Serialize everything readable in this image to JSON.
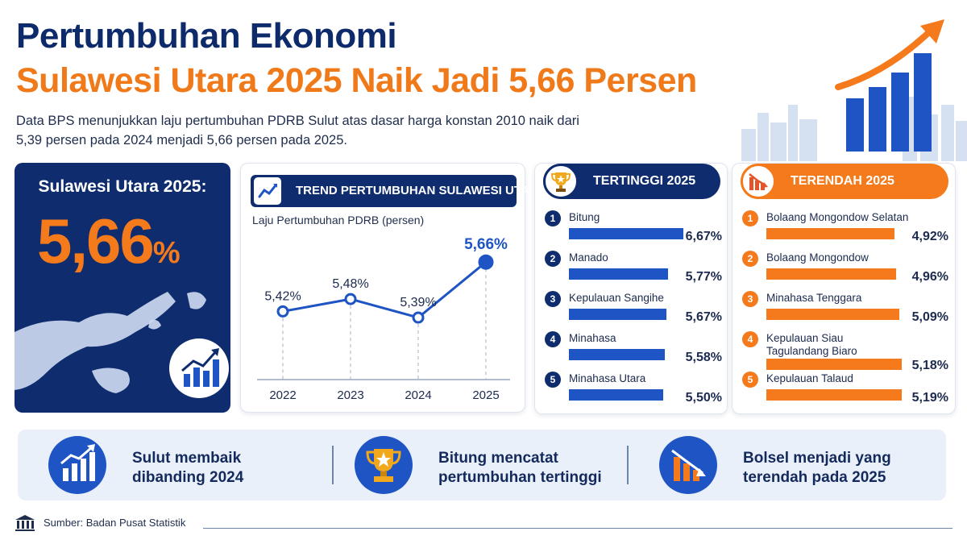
{
  "header": {
    "title_line1": "Pertumbuhan Ekonomi",
    "title_line2": "Sulawesi Utara 2025 Naik Jadi 5,66 Persen",
    "subtitle": "Data BPS menunjukkan laju pertumbuhan PDRB Sulut atas dasar harga konstan 2010 naik dari 5,39 persen pada 2024 menjadi 5,66 persen pada 2025."
  },
  "highlight": {
    "label": "Sulawesi Utara 2025:",
    "value": "5,66",
    "unit": "%",
    "icon": "bar-chart-growth-icon"
  },
  "trend": {
    "header": "TREND PERTUMBUHAN SULAWESI UTARA",
    "icon": "line-chart-icon"
  },
  "chart_data": {
    "type": "line",
    "title": "TREND PERTUMBUHAN SULAWESI UTARA",
    "subtitle": "Laju Pertumbuhan PDRB (persen)",
    "x": [
      "2022",
      "2023",
      "2024",
      "2025"
    ],
    "series": [
      {
        "values": [
          5.42,
          5.48,
          5.39,
          5.66
        ]
      }
    ],
    "data_labels": [
      "5,42%",
      "5,48%",
      "5,39%",
      "5,66%"
    ],
    "ylim": [
      5.3,
      5.7
    ],
    "grid": false,
    "color": "#1f54c4"
  },
  "highest": {
    "title": "TERTINGGI 2025",
    "icon": "trophy-icon",
    "max_value": 6.67,
    "items": [
      {
        "rank": "1",
        "name": "Bitung",
        "value": 6.67,
        "label": "6,67%"
      },
      {
        "rank": "2",
        "name": "Manado",
        "value": 5.77,
        "label": "5,77%"
      },
      {
        "rank": "3",
        "name": "Kepulauan Sangihe",
        "value": 5.67,
        "label": "5,67%"
      },
      {
        "rank": "4",
        "name": "Minahasa",
        "value": 5.58,
        "label": "5,58%"
      },
      {
        "rank": "5",
        "name": "Minahasa Utara",
        "value": 5.5,
        "label": "5,50%"
      }
    ]
  },
  "lowest": {
    "title": "TERENDAH 2025",
    "icon": "declining-chart-icon",
    "max_value": 5.19,
    "items": [
      {
        "rank": "1",
        "name": "Bolaang Mongondow Selatan",
        "value": 4.92,
        "label": "4,92%"
      },
      {
        "rank": "2",
        "name": "Bolaang Mongondow",
        "value": 4.96,
        "label": "4,96%"
      },
      {
        "rank": "3",
        "name": "Minahasa Tenggara",
        "value": 5.09,
        "label": "5,09%"
      },
      {
        "rank": "4",
        "name": "Kepulauan Siau Tagulandang Biaro",
        "name_line1": "Kepulauan Siau",
        "name_line2": "Tagulandang Biaro",
        "value": 5.18,
        "label": "5,18%"
      },
      {
        "rank": "5",
        "name": "Kepulauan Talaud",
        "value": 5.19,
        "label": "5,19%"
      }
    ]
  },
  "summary": {
    "items": [
      {
        "line1": "Sulut membaik",
        "line2": "dibanding 2024",
        "icon": "growth-chart-icon"
      },
      {
        "line1": "Bitung mencatat",
        "line2": "pertumbuhan tertinggi",
        "icon": "trophy-icon"
      },
      {
        "line1": "Bolsel menjadi yang",
        "line2": "terendah pada 2025",
        "icon": "declining-chart-icon"
      }
    ]
  },
  "source": {
    "text": "Sumber: Badan Pusat Statistik",
    "icon": "institution-icon"
  },
  "colors": {
    "navy": "#0f2d6e",
    "blue": "#1f54c4",
    "orange": "#f47a1c"
  }
}
